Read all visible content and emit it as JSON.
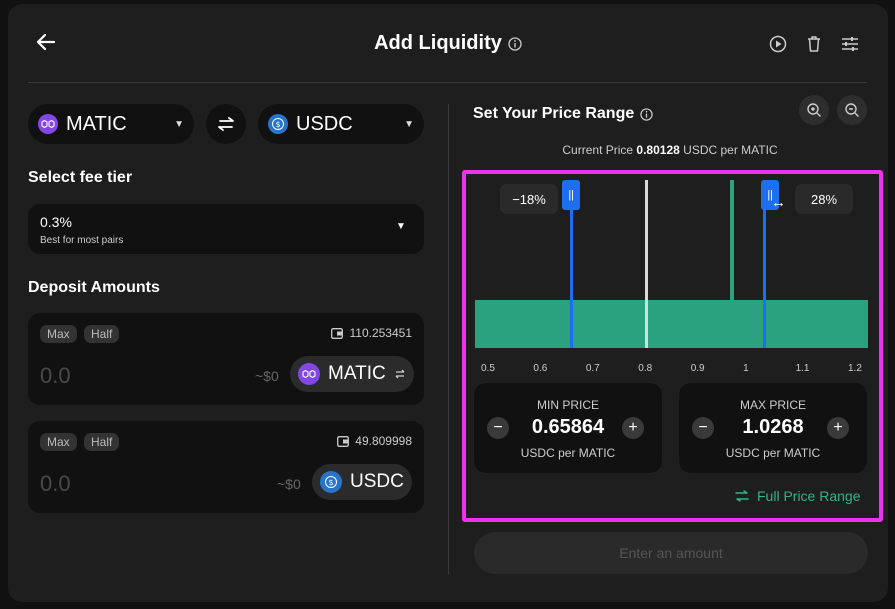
{
  "header": {
    "title": "Add Liquidity"
  },
  "tokens": {
    "token_a": "MATIC",
    "token_b": "USDC"
  },
  "fee": {
    "section_label": "Select fee tier",
    "value": "0.3%",
    "description": "Best for most pairs"
  },
  "deposit": {
    "section_label": "Deposit Amounts",
    "cards": [
      {
        "max_label": "Max",
        "half_label": "Half",
        "balance": "110.253451",
        "placeholder": "0.0",
        "usd": "~$0",
        "token": "MATIC"
      },
      {
        "max_label": "Max",
        "half_label": "Half",
        "balance": "49.809998",
        "placeholder": "0.0",
        "usd": "~$0",
        "token": "USDC"
      }
    ]
  },
  "range": {
    "section_label": "Set Your Price Range",
    "current_price_label": "Current Price",
    "current_price_value": "0.80128",
    "current_price_unit": "USDC per MATIC",
    "min_pct": "−18%",
    "max_pct": "28%",
    "x_ticks": [
      "0.5",
      "0.6",
      "0.7",
      "0.8",
      "0.9",
      "1",
      "1.1",
      "1.2"
    ],
    "x_min": 0.5,
    "x_max": 1.2,
    "liquidity_from": 0.5,
    "liquidity_to": 1.2,
    "liquidity_spike_at": 0.965,
    "current_price": 0.80128,
    "min_price": 0.65864,
    "max_price": 1.0268,
    "min_card": {
      "label": "MIN PRICE",
      "value": "0.65864",
      "unit": "USDC per MATIC"
    },
    "max_card": {
      "label": "MAX PRICE",
      "value": "1.0268",
      "unit": "USDC per MATIC"
    },
    "full_range_label": "Full Price Range"
  },
  "submit": {
    "label": "Enter an amount"
  },
  "colors": {
    "liquidity": "#2aa27f",
    "handle": "#1e6ff0",
    "current_price": "#d9d9d9",
    "highlight": "#ee33ee",
    "accent": "#2fb38a"
  }
}
